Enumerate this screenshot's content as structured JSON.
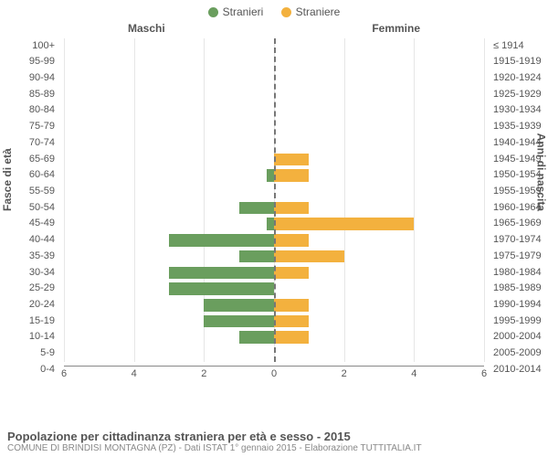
{
  "legend": {
    "m": {
      "label": "Stranieri",
      "color": "#6a9e5e"
    },
    "f": {
      "label": "Straniere",
      "color": "#f3b13e"
    }
  },
  "headers": {
    "maschi": "Maschi",
    "femmine": "Femmine"
  },
  "chart": {
    "type": "bar",
    "orientation": "horizontal-pyramid",
    "xlim": 6,
    "xtick_step": 2,
    "background_color": "#ffffff",
    "grid_color": "#e6e6e6",
    "center_line_color": "#777777",
    "bar_color_m": "#6a9e5e",
    "bar_color_f": "#f3b13e",
    "font_color": "#555555",
    "label_fontsize": 11,
    "y_title_left": "Fasce di età",
    "y_title_right": "Anni di nascita",
    "categories": [
      {
        "age": "100+",
        "year": "≤ 1914",
        "m": 0,
        "f": 0
      },
      {
        "age": "95-99",
        "year": "1915-1919",
        "m": 0,
        "f": 0
      },
      {
        "age": "90-94",
        "year": "1920-1924",
        "m": 0,
        "f": 0
      },
      {
        "age": "85-89",
        "year": "1925-1929",
        "m": 0,
        "f": 0
      },
      {
        "age": "80-84",
        "year": "1930-1934",
        "m": 0,
        "f": 0
      },
      {
        "age": "75-79",
        "year": "1935-1939",
        "m": 0,
        "f": 0
      },
      {
        "age": "70-74",
        "year": "1940-1944",
        "m": 0,
        "f": 0
      },
      {
        "age": "65-69",
        "year": "1945-1949",
        "m": 0,
        "f": 1
      },
      {
        "age": "60-64",
        "year": "1950-1954",
        "m": 0.2,
        "f": 1
      },
      {
        "age": "55-59",
        "year": "1955-1959",
        "m": 0,
        "f": 0
      },
      {
        "age": "50-54",
        "year": "1960-1964",
        "m": 1,
        "f": 1
      },
      {
        "age": "45-49",
        "year": "1965-1969",
        "m": 0.2,
        "f": 4
      },
      {
        "age": "40-44",
        "year": "1970-1974",
        "m": 3,
        "f": 1
      },
      {
        "age": "35-39",
        "year": "1975-1979",
        "m": 1,
        "f": 2
      },
      {
        "age": "30-34",
        "year": "1980-1984",
        "m": 3,
        "f": 1
      },
      {
        "age": "25-29",
        "year": "1985-1989",
        "m": 3,
        "f": 0
      },
      {
        "age": "20-24",
        "year": "1990-1994",
        "m": 2,
        "f": 1
      },
      {
        "age": "15-19",
        "year": "1995-1999",
        "m": 2,
        "f": 1
      },
      {
        "age": "10-14",
        "year": "2000-2004",
        "m": 1,
        "f": 1
      },
      {
        "age": "5-9",
        "year": "2005-2009",
        "m": 0,
        "f": 0
      },
      {
        "age": "0-4",
        "year": "2010-2014",
        "m": 0,
        "f": 0
      }
    ]
  },
  "footer": {
    "title": "Popolazione per cittadinanza straniera per età e sesso - 2015",
    "subtitle": "COMUNE DI BRINDISI MONTAGNA (PZ) - Dati ISTAT 1° gennaio 2015 - Elaborazione TUTTITALIA.IT"
  }
}
